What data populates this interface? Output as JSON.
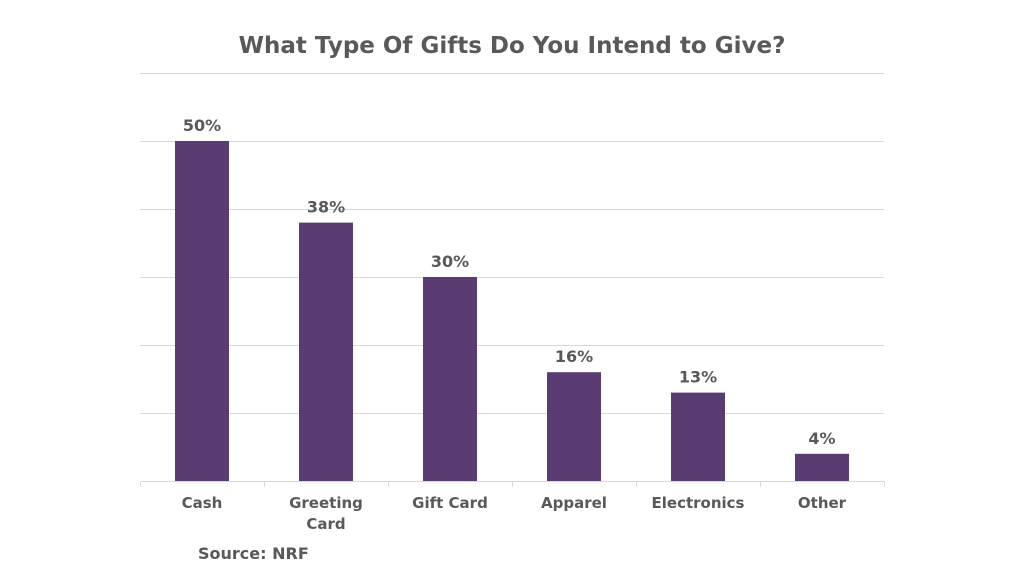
{
  "chart_data": {
    "type": "bar",
    "title": "What Type Of Gifts Do You Intend to Give?",
    "categories": [
      [
        "Cash"
      ],
      [
        "Greeting",
        "Card"
      ],
      [
        "Gift Card"
      ],
      [
        "Apparel"
      ],
      [
        "Electronics"
      ],
      [
        "Other"
      ]
    ],
    "values": [
      50,
      38,
      30,
      16,
      13,
      4
    ],
    "value_labels": [
      "50%",
      "38%",
      "30%",
      "16%",
      "13%",
      "4%"
    ],
    "unit": "%",
    "ylim": [
      0,
      60
    ],
    "ytick_step": 10,
    "grid": true,
    "y_axis_labels_shown": false,
    "bar_color": "#5b3c72",
    "text_color": "#595959",
    "grid_color": "#d9d9d9"
  },
  "footer": {
    "source": "Source: NRF"
  }
}
